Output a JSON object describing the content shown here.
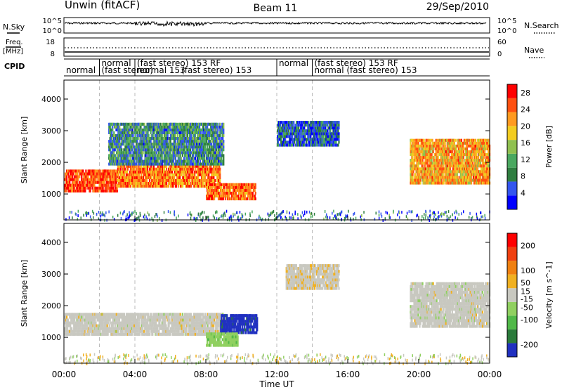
{
  "header": {
    "station": "Unwin (fitACF)",
    "beam": "Beam 11",
    "date": "29/Sep/2010"
  },
  "sidepanel_labels": {
    "nsky": "N.Sky",
    "freq": "Freq.",
    "freq_unit": "[MHz]",
    "cpid": "CPID",
    "nsearch": "N.Search",
    "nave": "Nave"
  },
  "strip_ticks": {
    "noise_left": [
      "10^5",
      "10^0"
    ],
    "noise_right": [
      "10^5",
      "10^0"
    ],
    "freq_left": [
      "18",
      "8"
    ],
    "nave_right": [
      "60",
      "0"
    ]
  },
  "cpid_labels": [
    {
      "text": "normal",
      "row": 1,
      "start_hour": 0.0
    },
    {
      "text": "normal",
      "row": 0,
      "start_hour": 2.0
    },
    {
      "text": "(fast stereo)",
      "row": 1,
      "start_hour": 2.0
    },
    {
      "text": "(fast stereo) 153 RF",
      "row": 0,
      "start_hour": 4.0
    },
    {
      "text": "normal 153",
      "row": 1,
      "start_hour": 4.0
    },
    {
      "text": "(fast stereo)  153",
      "row": 1,
      "start_hour": 6.5
    },
    {
      "text": "normal",
      "row": 0,
      "start_hour": 12.0
    },
    {
      "text": "(fast stereo) 153 RF",
      "row": 0,
      "start_hour": 14.0
    },
    {
      "text": "normal (fast stereo) 153",
      "row": 1,
      "start_hour": 14.0
    }
  ],
  "chart_data": {
    "type": "heatmap",
    "xlabel": "Time UT",
    "x_ticks": [
      "00:00",
      "04:00",
      "08:00",
      "12:00",
      "16:00",
      "20:00",
      "00:00"
    ],
    "x_range_hours": [
      0,
      24
    ],
    "mode_change_hours": [
      2,
      4,
      12,
      14
    ],
    "panels": [
      {
        "name": "power",
        "ylabel": "Slant Range [km]",
        "yticks": [
          1000,
          2000,
          3000,
          4000
        ],
        "ylim": [
          180,
          4600
        ],
        "colorbar": {
          "label": "Power [dB]",
          "ticks": [
            4,
            8,
            12,
            16,
            20,
            24,
            28
          ],
          "range": [
            0,
            30
          ],
          "colors": [
            "#0000ff",
            "#3355ee",
            "#2f7d40",
            "#4aa860",
            "#90c050",
            "#f2cc20",
            "#ff9a20",
            "#ff5010",
            "#ff0000"
          ]
        },
        "regions": [
          {
            "t0": 0.0,
            "t1": 3.0,
            "r0": 1050,
            "r1": 1700,
            "v": 26
          },
          {
            "t0": 3.0,
            "t1": 8.8,
            "r0": 1200,
            "r1": 1850,
            "v": 23
          },
          {
            "t0": 8.0,
            "t1": 10.8,
            "r0": 800,
            "r1": 1300,
            "v": 24
          },
          {
            "t0": 2.5,
            "t1": 9.0,
            "r0": 1900,
            "r1": 3200,
            "v": 9
          },
          {
            "t0": 19.5,
            "t1": 24.0,
            "r0": 1300,
            "r1": 2700,
            "v": 21
          },
          {
            "t0": 12.0,
            "t1": 15.5,
            "r0": 2500,
            "r1": 3300,
            "v": 6
          }
        ]
      },
      {
        "name": "velocity",
        "ylabel": "Slant Range [km]",
        "yticks": [
          1000,
          2000,
          3000,
          4000
        ],
        "ylim": [
          180,
          4600
        ],
        "colorbar": {
          "label": "Velocity [m s^-1]",
          "ticks": [
            200,
            100,
            50,
            15,
            -15,
            -50,
            -100,
            -200
          ],
          "range": [
            -250,
            250
          ],
          "colors": [
            "#2030c0",
            "#2a7a3a",
            "#50b848",
            "#90d060",
            "#c8c8c0",
            "#f0b020",
            "#f08010",
            "#f04010",
            "#ff0000"
          ]
        },
        "regions": [
          {
            "t0": 0.0,
            "t1": 9.0,
            "r0": 1050,
            "r1": 1750,
            "v": 0
          },
          {
            "t0": 8.8,
            "t1": 10.9,
            "r0": 1100,
            "r1": 1700,
            "v": -220
          },
          {
            "t0": 8.0,
            "t1": 9.8,
            "r0": 700,
            "r1": 1100,
            "v": -60
          },
          {
            "t0": 19.5,
            "t1": 24.0,
            "r0": 1300,
            "r1": 2700,
            "v": 0
          },
          {
            "t0": 12.5,
            "t1": 15.5,
            "r0": 2500,
            "r1": 3300,
            "v": 10
          }
        ]
      }
    ]
  }
}
